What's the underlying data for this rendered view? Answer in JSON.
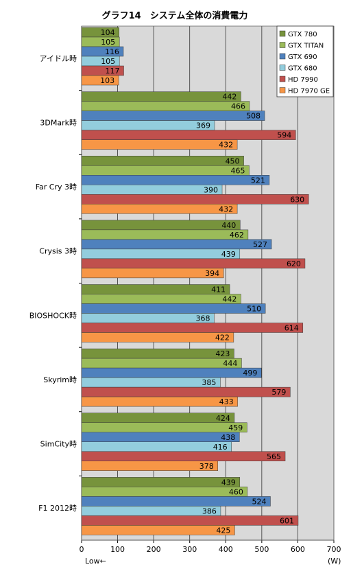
{
  "chart_data": {
    "type": "bar",
    "orientation": "horizontal",
    "title": "グラフ14　システム全体の消費電力",
    "categories": [
      "アイドル時",
      "3DMark時",
      "Far Cry 3時",
      "Crysis 3時",
      "BIOSHOCK時",
      "Skyrim時",
      "SimCity時",
      "F1 2012時"
    ],
    "series": [
      {
        "name": "GTX 780",
        "color": "#77933c",
        "values": [
          104,
          442,
          450,
          440,
          411,
          423,
          424,
          439
        ]
      },
      {
        "name": "GTX TITAN",
        "color": "#9bbb59",
        "values": [
          105,
          466,
          465,
          462,
          442,
          444,
          459,
          460
        ]
      },
      {
        "name": "GTX 690",
        "color": "#4f81bd",
        "values": [
          116,
          508,
          521,
          527,
          510,
          499,
          438,
          524
        ]
      },
      {
        "name": "GTX 680",
        "color": "#93cddd",
        "values": [
          105,
          369,
          390,
          439,
          368,
          385,
          416,
          386
        ]
      },
      {
        "name": "HD 7990",
        "color": "#c0504d",
        "values": [
          117,
          594,
          630,
          620,
          614,
          579,
          565,
          601
        ]
      },
      {
        "name": "HD 7970 GE",
        "color": "#f79646",
        "values": [
          103,
          432,
          432,
          394,
          422,
          433,
          378,
          425
        ]
      }
    ],
    "xlim": [
      0,
      700
    ],
    "xticks": [
      0,
      100,
      200,
      300,
      400,
      500,
      600,
      700
    ],
    "xlabel_left": "Low←",
    "xlabel_right": "(W)",
    "grid": true,
    "legend_position": "top-right",
    "plot_background": "#d9d9d9"
  }
}
